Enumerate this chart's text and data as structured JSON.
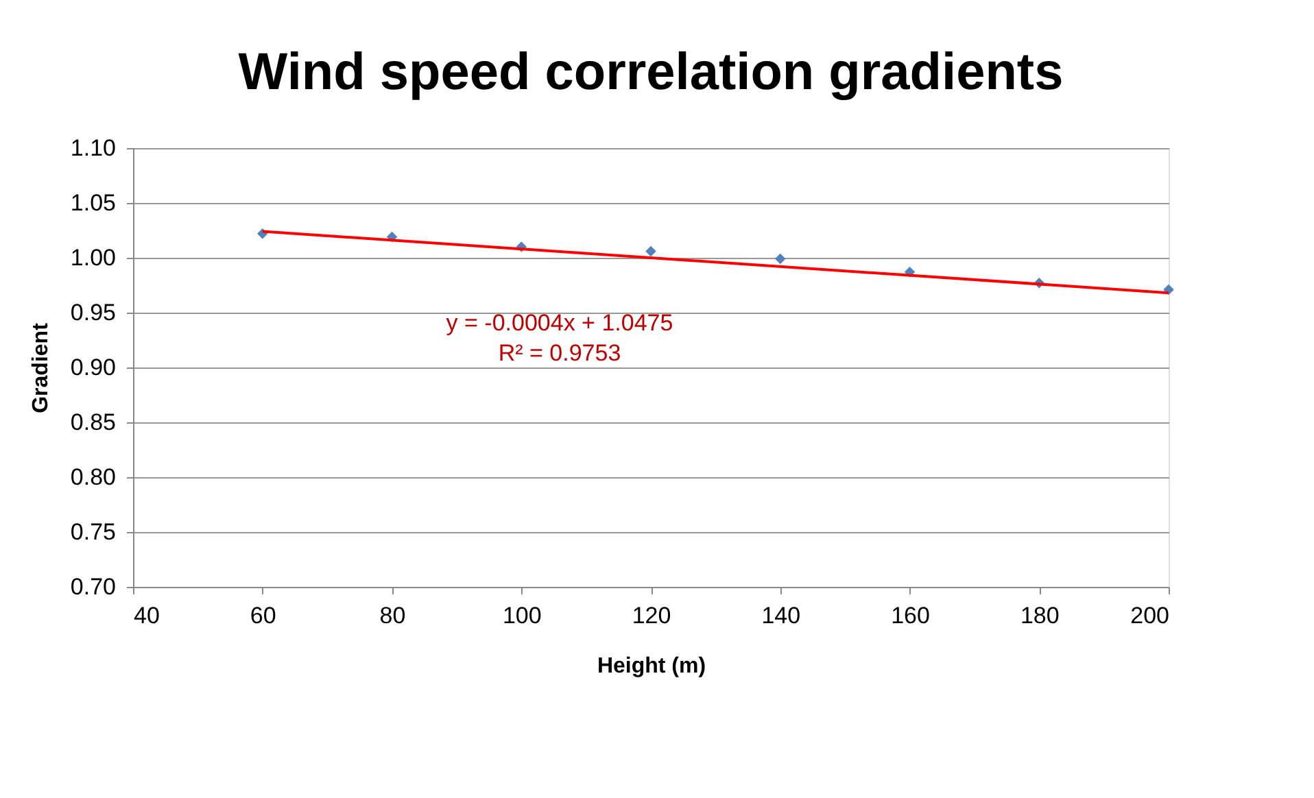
{
  "chart_data": {
    "type": "scatter",
    "title": "Wind speed correlation gradients",
    "xlabel": "Height (m)",
    "ylabel": "Gradient",
    "x": [
      60,
      80,
      100,
      120,
      140,
      160,
      180,
      200
    ],
    "series": [
      {
        "color": "#4f81bd",
        "marker": "diamond",
        "values": [
          1.022,
          1.019,
          1.01,
          1.006,
          0.999,
          0.987,
          0.977,
          0.971
        ]
      },
      {
        "type": "line",
        "color": "#ff0000",
        "marker": "none",
        "line_style": "solid",
        "x": [
          60,
          200
        ],
        "values": [
          1.024,
          0.968
        ]
      }
    ],
    "annotations": [
      "y = -0.0004x + 1.0475",
      "R² = 0.9753"
    ],
    "xlim": [
      40,
      200
    ],
    "xticks": [
      40,
      60,
      80,
      100,
      120,
      140,
      160,
      180,
      200
    ],
    "ylim": [
      0.7,
      1.1
    ],
    "yticks": [
      {
        "value": 0.7,
        "label": "0.70"
      },
      0.75,
      {
        "value": 0.8,
        "label": "0.80"
      },
      0.85,
      {
        "value": 0.9,
        "label": "0.90"
      },
      0.95,
      {
        "value": 1.0,
        "label": "1.00"
      },
      1.05,
      {
        "value": 1.1,
        "label": "1.10"
      }
    ],
    "grid": "y"
  }
}
